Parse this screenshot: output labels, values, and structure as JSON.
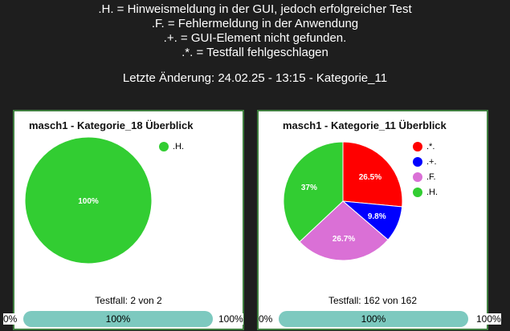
{
  "legend_lines": [
    ".H. = Hinweismeldung in der GUI, jedoch erfolgreicher Test",
    ".F. = Fehlermeldung in der Anwendung",
    ".+. = GUI-Element nicht gefunden.",
    ".*. = Testfall fehlgeschlagen"
  ],
  "updated": "Letzte Änderung: 24.02.25 - 13:15 - Kategorie_11",
  "panels": [
    {
      "title": "masch1 - Kategorie_18 Überblick",
      "legend": [
        {
          "label": ".H.",
          "color": "#32cd32"
        }
      ],
      "testfall": "Testfall: 2 von 2",
      "progress_value": 1.0,
      "progress_label": "100%",
      "min_label": "0%",
      "max_label": "100%"
    },
    {
      "title": "masch1 - Kategorie_11 Überblick",
      "legend": [
        {
          "label": ".*.",
          "color": "#ff0000"
        },
        {
          "label": ".+.",
          "color": "#0000ff"
        },
        {
          "label": ".F.",
          "color": "#da70d6"
        },
        {
          "label": ".H.",
          "color": "#32cd32"
        }
      ],
      "testfall": "Testfall: 162 von 162",
      "progress_value": 1.0,
      "progress_label": "100%",
      "min_label": "0%",
      "max_label": "100%"
    }
  ],
  "chart_data": [
    {
      "type": "pie",
      "title": "masch1 - Kategorie_18 Überblick",
      "categories": [
        ".H."
      ],
      "values": [
        100
      ],
      "labels": [
        "100%"
      ],
      "colors": [
        "#32cd32"
      ],
      "legend": "top-right"
    },
    {
      "type": "pie",
      "title": "masch1 - Kategorie_11 Überblick",
      "categories": [
        ".*.",
        ".+.",
        ".F.",
        ".H."
      ],
      "values": [
        26.5,
        9.8,
        26.7,
        37
      ],
      "labels": [
        "26.5%",
        "9.8%",
        "26.7%",
        "37%"
      ],
      "colors": [
        "#ff0000",
        "#0000ff",
        "#da70d6",
        "#32cd32"
      ],
      "legend": "top-right"
    }
  ]
}
